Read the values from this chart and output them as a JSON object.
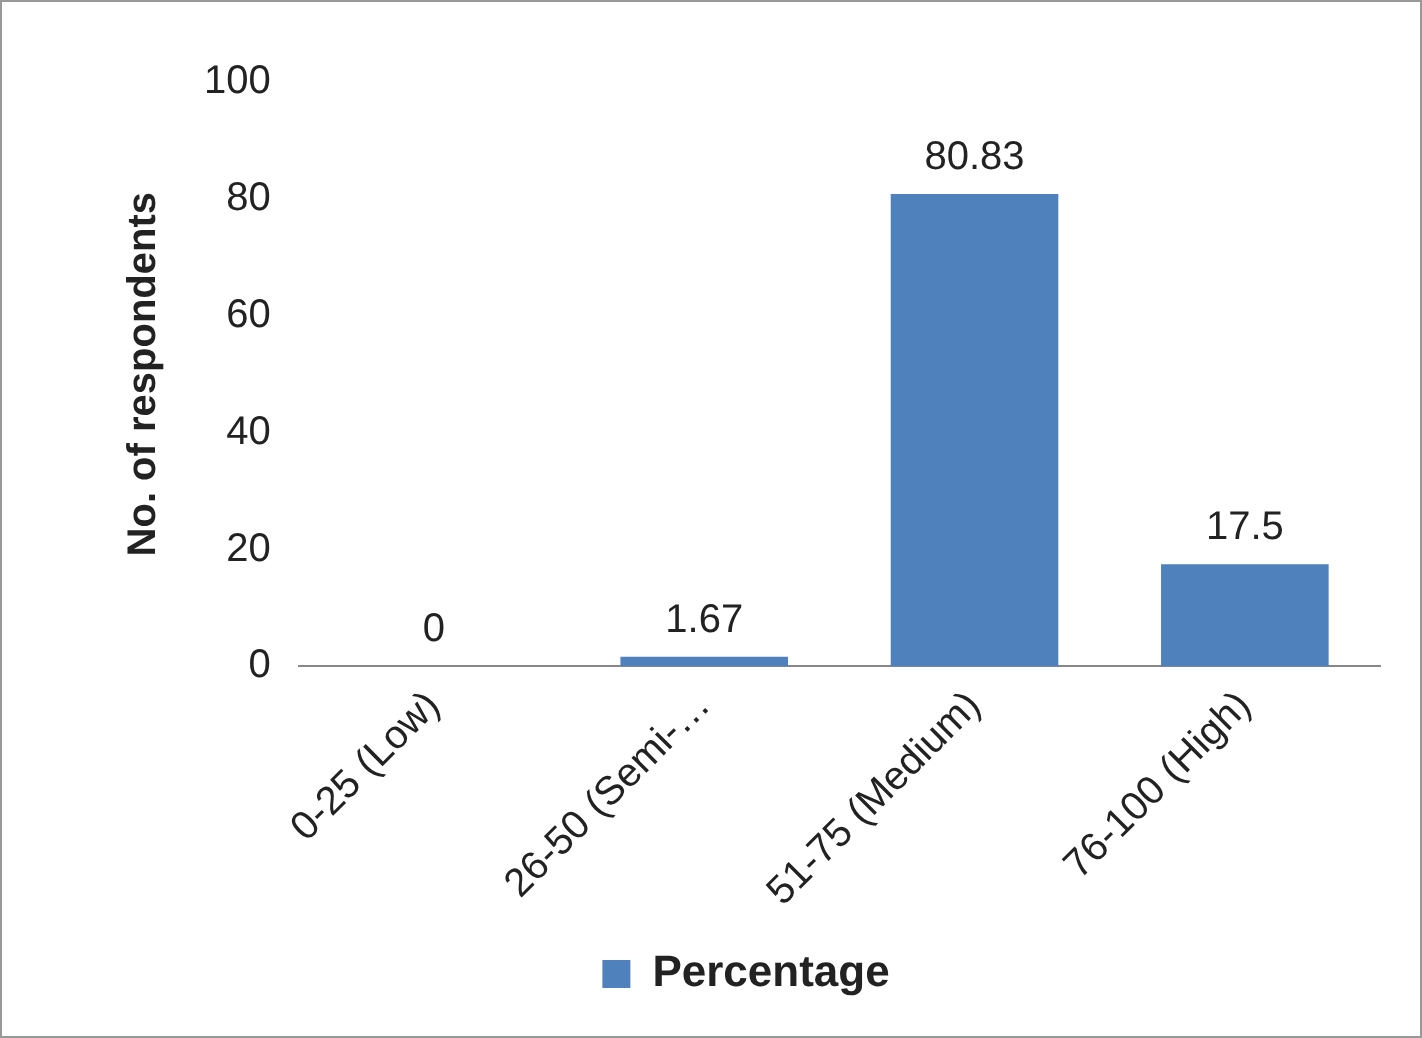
{
  "chart_data": {
    "type": "bar",
    "ylabel": "No. of respondents",
    "categories": [
      "0-25 (Low)",
      "26-50 (Semi-…",
      "51-75 (Medium)",
      "76-100 (High)"
    ],
    "series": [
      {
        "name": "Percentage",
        "color": "#4f81bd",
        "values": [
          0,
          1.67,
          80.83,
          17.5
        ]
      }
    ],
    "ylim": [
      0,
      100
    ],
    "yticks": [
      0,
      20,
      40,
      60,
      80,
      100
    ],
    "grid": false,
    "legend": "bottom",
    "data_labels": true
  }
}
